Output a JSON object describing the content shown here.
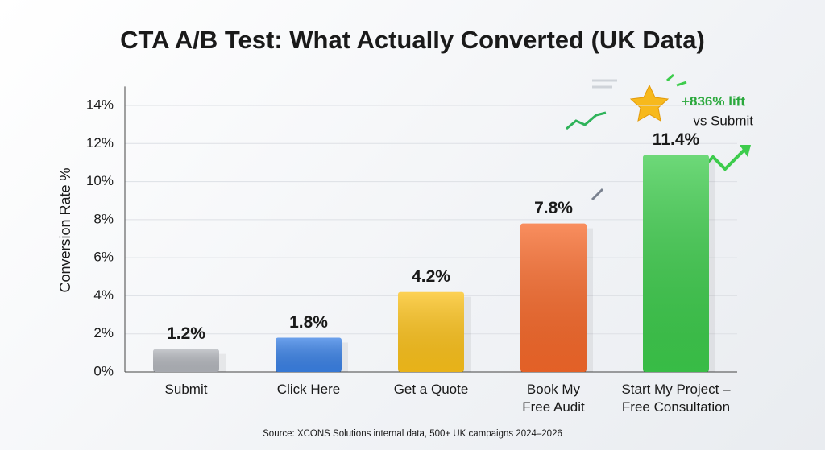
{
  "chart_data": {
    "type": "bar",
    "title": "CTA A/B Test: What Actually Converted (UK Data)",
    "y_label": "Conversion Rate %",
    "categories": [
      "Submit",
      "Click Here",
      "Get a Quote",
      "Book My\nFree Audit",
      "Start My Project –\nFree Consultation"
    ],
    "values": [
      1.2,
      1.8,
      4.2,
      7.8,
      11.4
    ],
    "value_labels": [
      "1.2%",
      "1.8%",
      "4.2%",
      "7.8%",
      "11.4%"
    ],
    "colors": [
      "#b4b7bd",
      "#3b82e6",
      "#fcc21b",
      "#f7692a",
      "#3dcc4c"
    ],
    "ylim": [
      0,
      15
    ],
    "yticks": [
      {
        "value": 0,
        "label": "0%"
      },
      {
        "value": 2,
        "label": "2%"
      },
      {
        "value": 4,
        "label": "4%"
      },
      {
        "value": 6,
        "label": "6%"
      },
      {
        "value": 8,
        "label": "8%"
      },
      {
        "value": 10,
        "label": "10%"
      },
      {
        "value": 12,
        "label": "12%"
      },
      {
        "value": 14,
        "label": "14%"
      }
    ],
    "grid": true,
    "annotation": {
      "headline": "+836% lift",
      "subline": "vs Submit"
    },
    "source": "Source: XCONS Solutions internal data, 500+ UK campaigns 2024–2026"
  }
}
